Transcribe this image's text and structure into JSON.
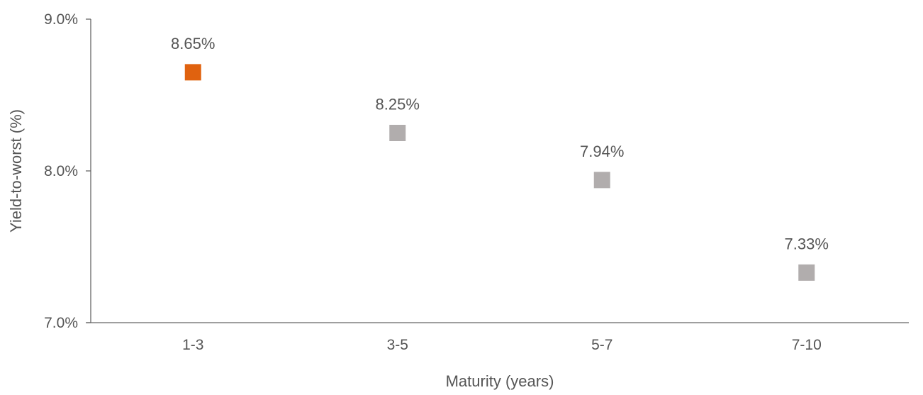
{
  "chart_data": {
    "type": "scatter",
    "title": "",
    "xlabel": "Maturity (years)",
    "ylabel": "Yield-to-worst (%)",
    "categories": [
      "1-3",
      "3-5",
      "5-7",
      "7-10"
    ],
    "values": [
      8.65,
      8.25,
      7.94,
      7.33
    ],
    "data_labels": [
      "8.65%",
      "8.25%",
      "7.94%",
      "7.33%"
    ],
    "marker_colors": [
      "#E0620F",
      "#B1ADAD",
      "#B1ADAD",
      "#B1ADAD"
    ],
    "marker_shape": "square",
    "ylim": [
      7.0,
      9.0
    ],
    "yticks": [
      {
        "value": 9.0,
        "label": "9.0%"
      },
      {
        "value": 8.0,
        "label": "8.0%"
      },
      {
        "value": 7.0,
        "label": "7.0%"
      }
    ],
    "grid": false,
    "legend": "none"
  },
  "colors": {
    "axis": "#666666",
    "text": "#555555",
    "highlight": "#E0620F",
    "marker": "#B1ADAD"
  }
}
